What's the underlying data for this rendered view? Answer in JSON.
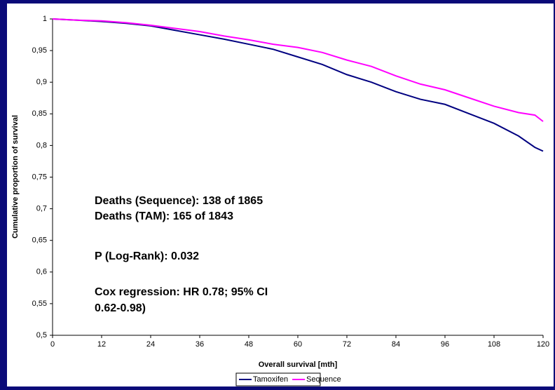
{
  "chart_data": {
    "type": "line",
    "x_label": "Overall survival [mth]",
    "y_label": "Cumulative proportion of survival",
    "x": [
      0,
      6,
      12,
      18,
      24,
      30,
      36,
      42,
      48,
      54,
      60,
      66,
      72,
      78,
      84,
      90,
      96,
      102,
      108,
      114,
      118,
      120
    ],
    "series": [
      {
        "name": "Tamoxifen",
        "color": "#000080",
        "values": [
          1.0,
          0.998,
          0.996,
          0.993,
          0.989,
          0.982,
          0.975,
          0.968,
          0.96,
          0.952,
          0.94,
          0.928,
          0.912,
          0.9,
          0.885,
          0.873,
          0.865,
          0.85,
          0.835,
          0.815,
          0.797,
          0.791
        ]
      },
      {
        "name": "Sequence",
        "color": "#ff00ff",
        "values": [
          1.0,
          0.998,
          0.997,
          0.994,
          0.99,
          0.985,
          0.98,
          0.973,
          0.967,
          0.96,
          0.955,
          0.947,
          0.935,
          0.925,
          0.91,
          0.897,
          0.888,
          0.875,
          0.862,
          0.852,
          0.848,
          0.838
        ]
      }
    ],
    "xlim": [
      0,
      120
    ],
    "xticks": [
      0,
      12,
      24,
      36,
      48,
      60,
      72,
      84,
      96,
      108,
      120
    ],
    "ylim": [
      0.5,
      1
    ],
    "yticks": [
      {
        "value": 0.5,
        "label": "0,5"
      },
      {
        "value": 0.55,
        "label": "0,55"
      },
      {
        "value": 0.6,
        "label": "0,6"
      },
      {
        "value": 0.65,
        "label": "0,65"
      },
      {
        "value": 0.7,
        "label": "0,7"
      },
      {
        "value": 0.75,
        "label": "0,75"
      },
      {
        "value": 0.8,
        "label": "0,8"
      },
      {
        "value": 0.85,
        "label": "0,85"
      },
      {
        "value": 0.9,
        "label": "0,9"
      },
      {
        "value": 0.95,
        "label": "0,95"
      },
      1
    ],
    "annotations": [
      "Deaths (Sequence): 138 of 1865",
      "Deaths (TAM): 165 of 1843",
      "P (Log-Rank): 0.032",
      "Cox regression: HR 0.78; 95% CI",
      "0.62-0.98)"
    ],
    "legend": "bottom"
  }
}
